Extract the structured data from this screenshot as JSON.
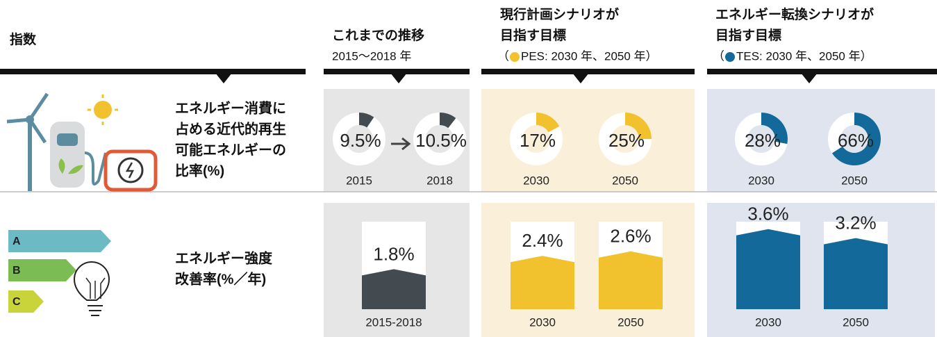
{
  "header": {
    "index": "指数",
    "history": {
      "title": [
        "これまでの推移"
      ],
      "subtitle": "2015〜2018 年"
    },
    "pes": {
      "title": [
        "現行計画シナリオが",
        "目指す目標"
      ],
      "note_prefix": "（",
      "note": "PES: 2030 年、2050 年）"
    },
    "tes": {
      "title": [
        "エネルギー転換シナリオが",
        "目指す目標"
      ],
      "note_prefix": "（",
      "note": "TES: 2030 年、2050 年）"
    }
  },
  "rows": [
    {
      "label": [
        "エネルギー消費に",
        "占める近代的再生",
        "可能エネルギーの",
        "比率(%)"
      ],
      "history": [
        {
          "year": "2015",
          "value": 9.5,
          "value_label": "9.5%"
        },
        {
          "year": "2018",
          "value": 10.5,
          "value_label": "10.5%"
        }
      ],
      "pes": [
        {
          "year": "2030",
          "value": 17,
          "value_label": "17%"
        },
        {
          "year": "2050",
          "value": 25,
          "value_label": "25%"
        }
      ],
      "tes": [
        {
          "year": "2030",
          "value": 28,
          "value_label": "28%"
        },
        {
          "year": "2050",
          "value": 66,
          "value_label": "66%"
        }
      ]
    },
    {
      "label": [
        "エネルギー強度",
        "改善率(%／年)"
      ],
      "history": [
        {
          "year": "2015-2018",
          "value": 1.8,
          "value_label": "1.8%"
        }
      ],
      "pes": [
        {
          "year": "2030",
          "value": 2.4,
          "value_label": "2.4%"
        },
        {
          "year": "2050",
          "value": 2.6,
          "value_label": "2.6%"
        }
      ],
      "tes": [
        {
          "year": "2030",
          "value": 3.6,
          "value_label": "3.6%"
        },
        {
          "year": "2050",
          "value": 3.2,
          "value_label": "3.2%"
        }
      ]
    }
  ],
  "colors": {
    "history": "#434b50",
    "pes": "#f2c12e",
    "tes": "#12699a"
  }
}
